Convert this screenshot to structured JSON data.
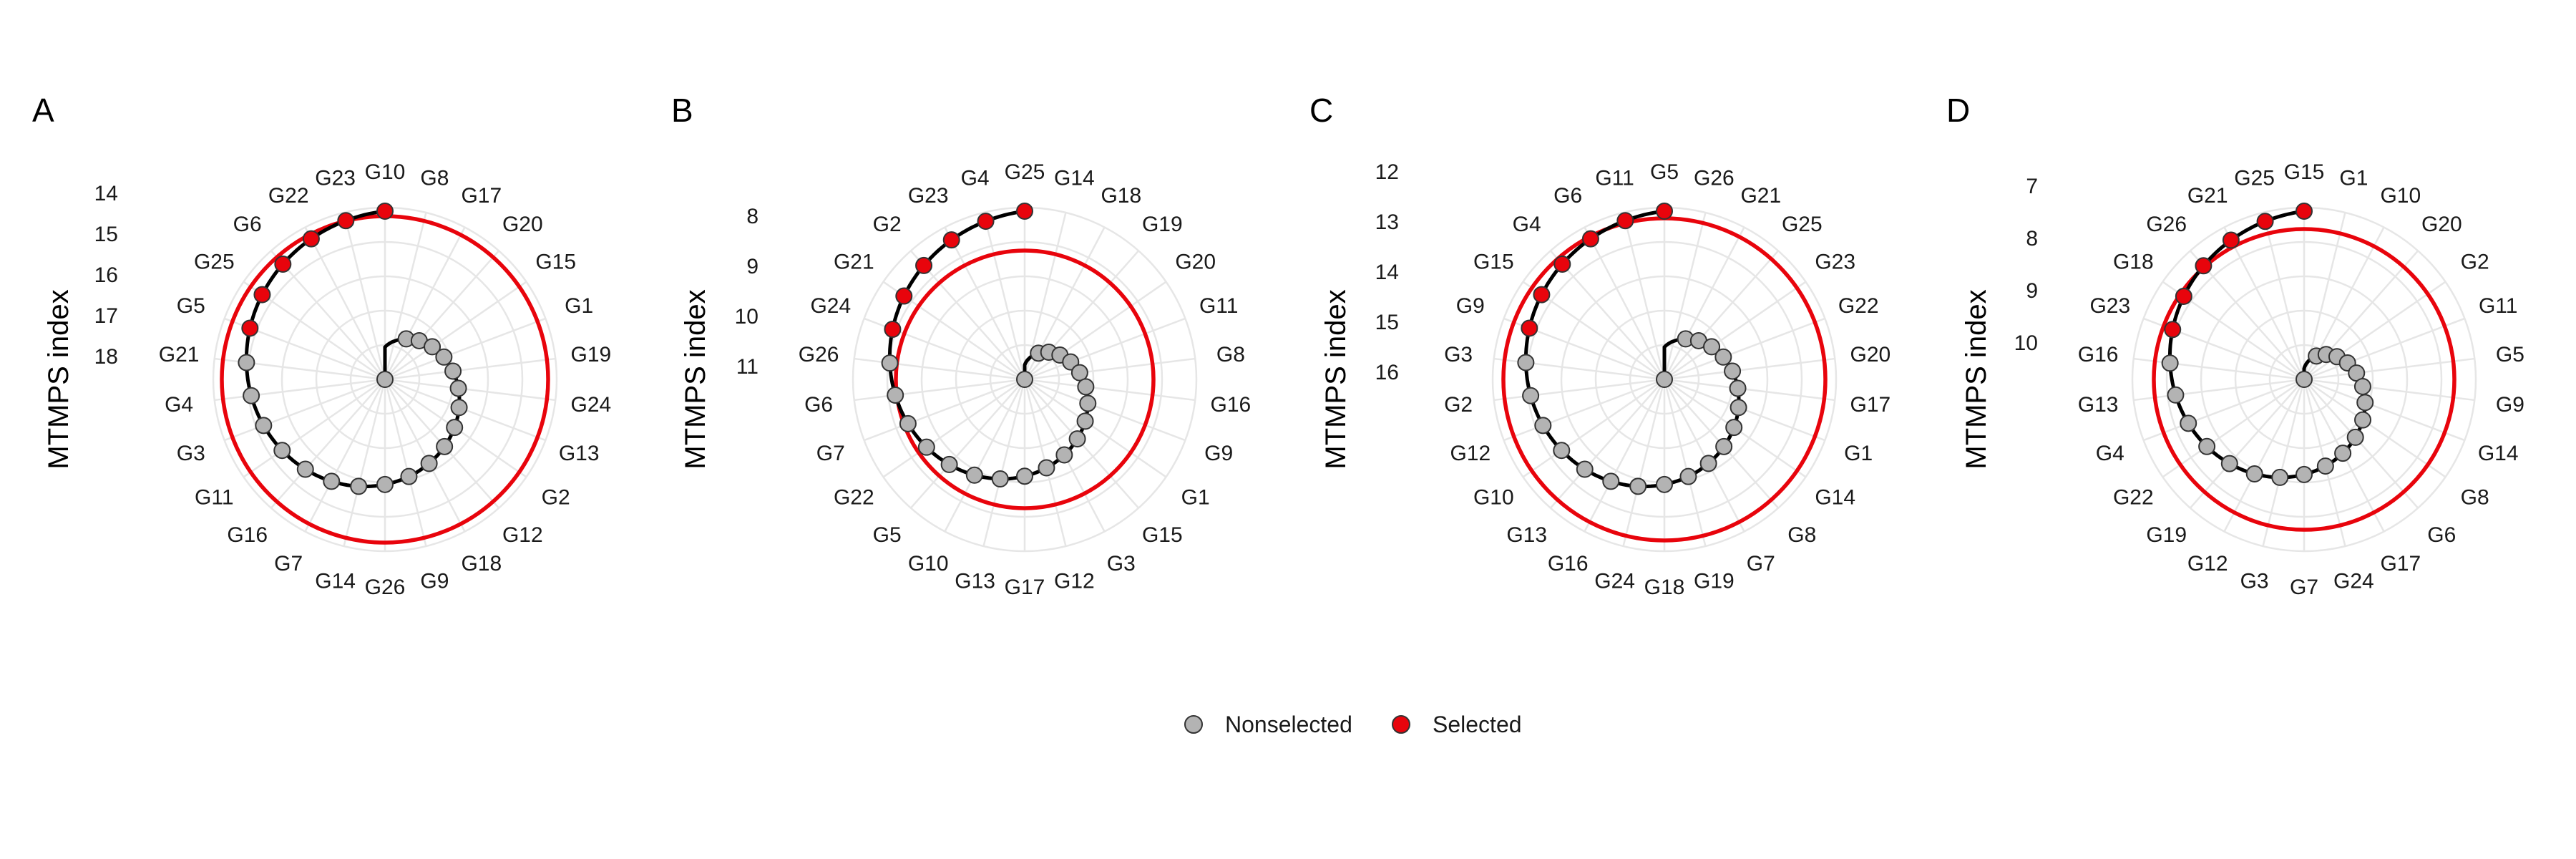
{
  "colors": {
    "selected": "#e8040c",
    "nonselected": "#b3b3b3",
    "grid": "#e6e6e6",
    "curve": "#000000",
    "threshold": "#e8040c"
  },
  "legend": {
    "placement": "bottom",
    "items": [
      {
        "label": "Nonselected",
        "color": "#b3b3b3"
      },
      {
        "label": "Selected",
        "color": "#e8040c"
      }
    ]
  },
  "chart_data": [
    {
      "type": "polar-spiral",
      "panel": "A",
      "ylabel": "MTMPS index",
      "radial_ticks": [
        "14",
        "15",
        "16",
        "17",
        "18"
      ],
      "selected_count": 6,
      "threshold_label": "",
      "genotypes": [
        "G10",
        "G8",
        "G17",
        "G20",
        "G15",
        "G1",
        "G19",
        "G24",
        "G13",
        "G2",
        "G12",
        "G18",
        "G9",
        "G26",
        "G14",
        "G7",
        "G16",
        "G11",
        "G3",
        "G4",
        "G21",
        "G5",
        "G25",
        "G6",
        "G22",
        "G23"
      ]
    },
    {
      "type": "polar-spiral",
      "panel": "B",
      "ylabel": "MTMPS index",
      "radial_ticks": [
        "8",
        "9",
        "10",
        "11"
      ],
      "selected_count": 6,
      "threshold_label": "",
      "genotypes": [
        "G25",
        "G14",
        "G18",
        "G19",
        "G20",
        "G11",
        "G8",
        "G16",
        "G9",
        "G1",
        "G15",
        "G3",
        "G12",
        "G17",
        "G13",
        "G10",
        "G5",
        "G22",
        "G7",
        "G6",
        "G26",
        "G24",
        "G21",
        "G2",
        "G23",
        "G4"
      ]
    },
    {
      "type": "polar-spiral",
      "panel": "C",
      "ylabel": "MTMPS index",
      "radial_ticks": [
        "12",
        "13",
        "14",
        "15",
        "16"
      ],
      "selected_count": 6,
      "threshold_label": "",
      "genotypes": [
        "G5",
        "G26",
        "G21",
        "G25",
        "G23",
        "G22",
        "G20",
        "G17",
        "G1",
        "G14",
        "G8",
        "G7",
        "G19",
        "G18",
        "G24",
        "G16",
        "G13",
        "G10",
        "G12",
        "G2",
        "G3",
        "G9",
        "G15",
        "G4",
        "G6",
        "G11"
      ]
    },
    {
      "type": "polar-spiral",
      "panel": "D",
      "ylabel": "MTMPS index",
      "radial_ticks": [
        "7",
        "8",
        "9",
        "10"
      ],
      "selected_count": 6,
      "threshold_label": "",
      "genotypes": [
        "G15",
        "G1",
        "G10",
        "G20",
        "G2",
        "G11",
        "G5",
        "G9",
        "G14",
        "G8",
        "G6",
        "G17",
        "G24",
        "G7",
        "G3",
        "G12",
        "G19",
        "G22",
        "G4",
        "G13",
        "G16",
        "G23",
        "G18",
        "G26",
        "G21",
        "G25"
      ]
    }
  ]
}
